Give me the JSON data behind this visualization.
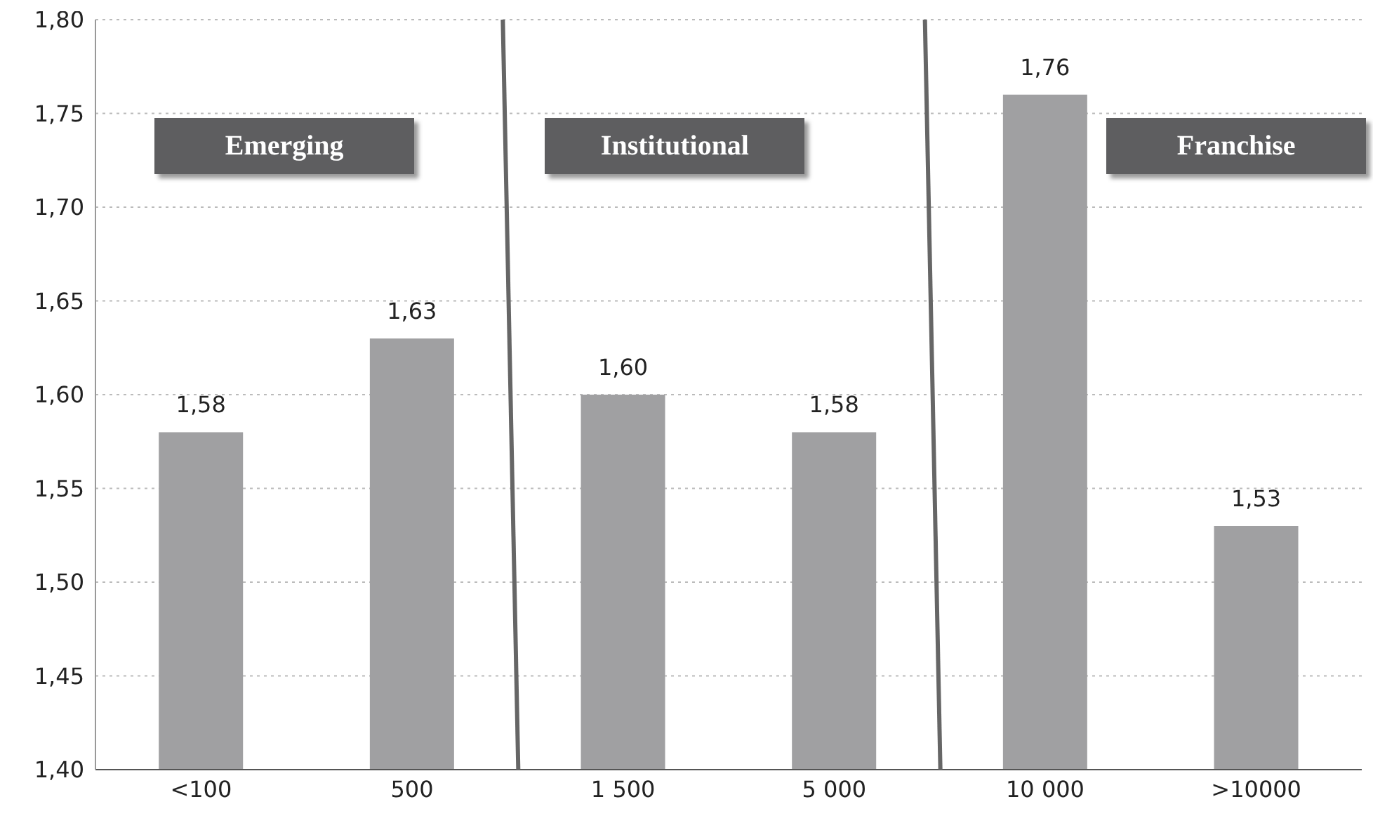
{
  "chart_data": {
    "type": "bar",
    "categories": [
      "<100",
      "500",
      "1 500",
      "5 000",
      "10 000",
      ">10000"
    ],
    "values": [
      1.58,
      1.63,
      1.6,
      1.58,
      1.76,
      1.53
    ],
    "value_labels": [
      "1,58",
      "1,63",
      "1,60",
      "1,58",
      "1,76",
      "1,53"
    ],
    "color": "#a0a0a2",
    "ylim": [
      1.4,
      1.8
    ],
    "yticks": [
      {
        "value": 1.4,
        "label": "1,40"
      },
      {
        "value": 1.45,
        "label": "1,45"
      },
      {
        "value": 1.5,
        "label": "1,50"
      },
      {
        "value": 1.55,
        "label": "1,55"
      },
      {
        "value": 1.6,
        "label": "1,60"
      },
      {
        "value": 1.65,
        "label": "1,65"
      },
      {
        "value": 1.7,
        "label": "1,70"
      },
      {
        "value": 1.75,
        "label": "1,75"
      },
      {
        "value": 1.8,
        "label": "1,80"
      }
    ],
    "grid": "y",
    "annotations": [
      "Emerging",
      "Institutional",
      "Franchise"
    ]
  }
}
